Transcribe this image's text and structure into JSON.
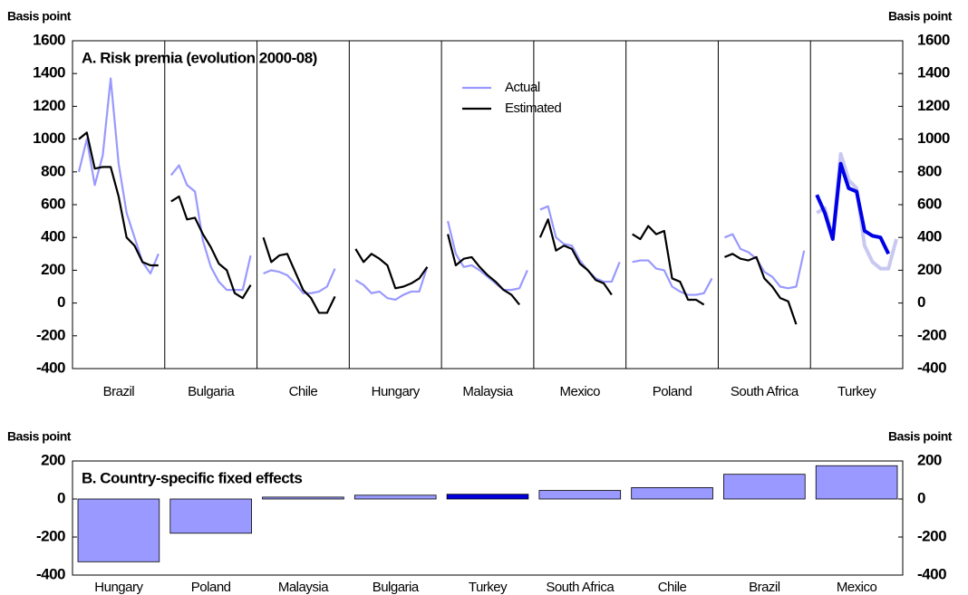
{
  "chart_data": [
    {
      "type": "line",
      "title": "A. Risk premia (evolution 2000-08)",
      "y_label": "Basis point",
      "ylim": [
        -400,
        1600
      ],
      "yticks": [
        -400,
        -200,
        0,
        200,
        400,
        600,
        800,
        1000,
        1200,
        1400,
        1600
      ],
      "categories": [
        "Brazil",
        "Bulgaria",
        "Chile",
        "Hungary",
        "Malaysia",
        "Mexico",
        "Poland",
        "South Africa",
        "Turkey"
      ],
      "highlight": 8,
      "series": [
        {
          "name": "Actual",
          "color": "#9999ff",
          "highlight_color": "#c8c8f2",
          "values": [
            [
              800,
              1000,
              720,
              900,
              1370,
              850,
              550,
              400,
              250,
              180,
              300
            ],
            [
              780,
              840,
              720,
              680,
              380,
              220,
              130,
              80,
              80,
              80,
              290
            ],
            [
              180,
              200,
              190,
              170,
              120,
              60,
              60,
              70,
              100,
              210
            ],
            [
              140,
              110,
              60,
              70,
              30,
              20,
              50,
              70,
              70,
              220
            ],
            [
              500,
              300,
              220,
              230,
              200,
              160,
              120,
              80,
              80,
              90,
              200
            ],
            [
              570,
              590,
              400,
              360,
              350,
              260,
              200,
              150,
              130,
              130,
              250
            ],
            [
              250,
              260,
              260,
              210,
              200,
              100,
              70,
              50,
              50,
              60,
              150
            ],
            [
              400,
              420,
              330,
              310,
              270,
              190,
              160,
              100,
              90,
              100,
              320
            ],
            [
              550,
              580,
              400,
              910,
              750,
              700,
              350,
              250,
              210,
              210,
              390
            ]
          ]
        },
        {
          "name": "Estimated",
          "color": "#000000",
          "highlight_color": "#0000e6",
          "values": [
            [
              1000,
              1040,
              820,
              830,
              830,
              650,
              400,
              350,
              250,
              230,
              230
            ],
            [
              620,
              650,
              510,
              520,
              420,
              340,
              240,
              200,
              60,
              30,
              110
            ],
            [
              400,
              250,
              290,
              300,
              190,
              80,
              30,
              -60,
              -60,
              40
            ],
            [
              330,
              250,
              300,
              270,
              230,
              90,
              100,
              120,
              150,
              220
            ],
            [
              420,
              230,
              270,
              280,
              220,
              170,
              130,
              80,
              50,
              -10
            ],
            [
              400,
              510,
              320,
              350,
              330,
              240,
              200,
              140,
              120,
              50
            ],
            [
              420,
              390,
              470,
              420,
              440,
              150,
              130,
              20,
              20,
              -10
            ],
            [
              280,
              300,
              270,
              260,
              280,
              150,
              100,
              30,
              10,
              -130
            ],
            [
              660,
              550,
              390,
              850,
              700,
              680,
              440,
              410,
              400,
              300
            ]
          ]
        }
      ]
    },
    {
      "type": "bar",
      "title": "B. Country-specific fixed effects",
      "y_label": "Basis point",
      "ylim": [
        -400,
        200
      ],
      "yticks": [
        -400,
        -200,
        0,
        200
      ],
      "categories": [
        "Hungary",
        "Poland",
        "Malaysia",
        "Bulgaria",
        "Turkey",
        "South Africa",
        "Chile",
        "Brazil",
        "Mexico"
      ],
      "values": [
        -330,
        -180,
        10,
        20,
        25,
        45,
        60,
        130,
        175
      ],
      "color": "#9999ff",
      "highlight": 4,
      "highlight_color": "#0000dd"
    }
  ]
}
